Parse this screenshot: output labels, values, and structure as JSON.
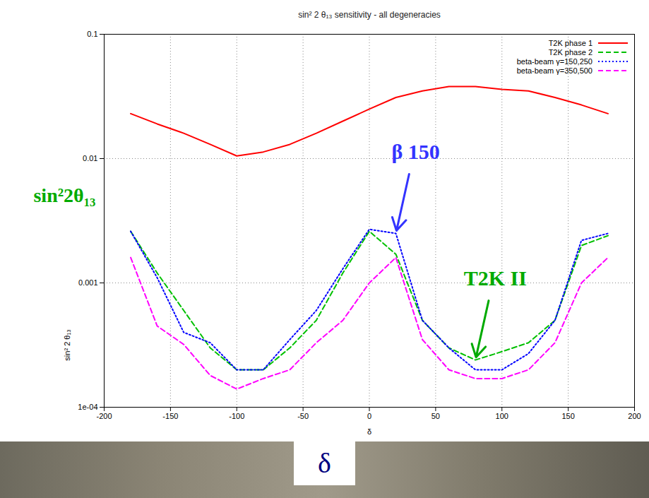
{
  "chart_data": {
    "type": "line",
    "title": "sin² 2 θ₁₃ sensitivity - all degeneracies",
    "x_label": "δ",
    "y_label": "sin² 2 θ₁₃",
    "x": [
      -180,
      -160,
      -140,
      -120,
      -100,
      -80,
      -60,
      -40,
      -20,
      0,
      20,
      40,
      60,
      80,
      100,
      120,
      140,
      160,
      180
    ],
    "series": [
      {
        "name": "T2K phase 1",
        "color": "#ff0000",
        "line_style": "solid",
        "values": [
          0.023,
          0.019,
          0.016,
          0.013,
          0.0105,
          0.0113,
          0.013,
          0.016,
          0.02,
          0.025,
          0.031,
          0.035,
          0.038,
          0.038,
          0.036,
          0.035,
          0.031,
          0.027,
          0.023
        ]
      },
      {
        "name": "T2K phase 2",
        "color": "#00c000",
        "line_style": "dashed",
        "values": [
          0.0026,
          0.0012,
          0.0006,
          0.0003,
          0.0002,
          0.0002,
          0.0003,
          0.0005,
          0.0012,
          0.0026,
          0.0017,
          0.0005,
          0.0003,
          0.00024,
          0.00028,
          0.00033,
          0.0005,
          0.002,
          0.0024
        ]
      },
      {
        "name": "beta-beam γ=150,250",
        "color": "#0000ff",
        "line_style": "dotted",
        "values": [
          0.0026,
          0.0011,
          0.0004,
          0.00033,
          0.0002,
          0.0002,
          0.00035,
          0.0006,
          0.0013,
          0.0027,
          0.0025,
          0.0005,
          0.0003,
          0.0002,
          0.0002,
          0.00027,
          0.0005,
          0.0022,
          0.0025
        ]
      },
      {
        "name": "beta-beam γ=350,500",
        "color": "#ff00ff",
        "line_style": "dashed",
        "values": [
          0.0016,
          0.00045,
          0.00032,
          0.00018,
          0.00014,
          0.00017,
          0.0002,
          0.00033,
          0.0005,
          0.001,
          0.0016,
          0.00035,
          0.0002,
          0.00017,
          0.00017,
          0.0002,
          0.00033,
          0.001,
          0.0016
        ]
      }
    ],
    "xlim": [
      -200,
      200
    ],
    "xticks": [
      -200,
      -150,
      -100,
      -50,
      0,
      50,
      100,
      150,
      200
    ],
    "ylim": [
      0.0001,
      0.1
    ],
    "yticks": [
      {
        "value": 0.0001,
        "label": "1e-04"
      },
      0.001,
      0.01,
      0.1
    ],
    "log": "y",
    "grid": true,
    "legend": "top-right",
    "annotations": [
      {
        "text": "sin²2θ₁₃",
        "color": "#00aa00"
      },
      {
        "text": "β 150",
        "color": "#3333ff",
        "x": 20,
        "y": 0.0025
      },
      {
        "text": "T2K II",
        "color": "#00aa00",
        "x": 80,
        "y": 0.00024
      },
      {
        "text": "δ",
        "color": "#000080"
      }
    ]
  }
}
